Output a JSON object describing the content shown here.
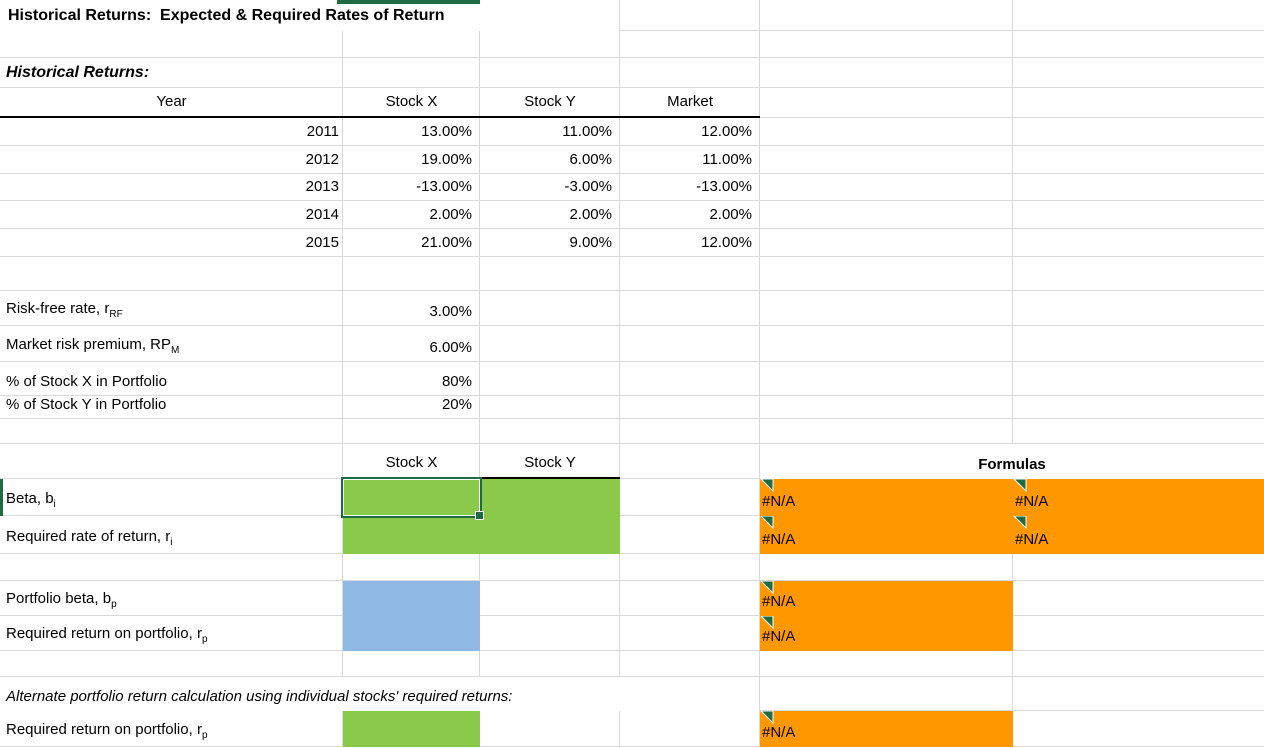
{
  "sheet_title": "Historical Returns:  Expected & Required Rates of Return",
  "historical": {
    "heading": "Historical Returns:",
    "headers": [
      "Year",
      "Stock X",
      "Stock Y",
      "Market"
    ],
    "rows": [
      [
        "2011",
        "13.00%",
        "11.00%",
        "12.00%"
      ],
      [
        "2012",
        "19.00%",
        "6.00%",
        "11.00%"
      ],
      [
        "2013",
        "-13.00%",
        "-3.00%",
        "-13.00%"
      ],
      [
        "2014",
        "2.00%",
        "2.00%",
        "2.00%"
      ],
      [
        "2015",
        "21.00%",
        "9.00%",
        "12.00%"
      ]
    ]
  },
  "inputs": {
    "rows": [
      {
        "label": "Risk-free rate, r",
        "sub": "RF",
        "value": "3.00%"
      },
      {
        "label": "Market risk premium, RP",
        "sub": "M",
        "value": "6.00%"
      },
      {
        "label": "% of Stock X in Portfolio",
        "sub": "",
        "value": "80%"
      },
      {
        "label": "% of Stock Y in Portfolio",
        "sub": "",
        "value": "20%"
      }
    ]
  },
  "beta_section": {
    "col_headers": [
      "Stock X",
      "Stock Y"
    ],
    "formulas_header": "Formulas",
    "row1_label": "Beta, b",
    "row1_sub": "i",
    "row2_label": "Required rate of return, r",
    "row2_sub": "i",
    "na": "#N/A"
  },
  "portfolio_section": {
    "row1_label": "Portfolio beta, b",
    "row1_sub": "p",
    "row2_label": "Required return on portfolio, r",
    "row2_sub": "p"
  },
  "alternate_section": {
    "note": "Alternate portfolio return calculation using individual stocks' required returns:",
    "row_label": "Required return on portfolio, r",
    "row_sub": "p"
  },
  "chart_data": {
    "type": "table",
    "title": "Historical Returns:  Expected & Required Rates of Return",
    "categories": [
      "2011",
      "2012",
      "2013",
      "2014",
      "2015"
    ],
    "series": [
      {
        "name": "Stock X",
        "values": [
          13.0,
          19.0,
          -13.0,
          2.0,
          21.0
        ]
      },
      {
        "name": "Stock Y",
        "values": [
          11.0,
          6.0,
          -3.0,
          2.0,
          9.0
        ]
      },
      {
        "name": "Market",
        "values": [
          12.0,
          11.0,
          -13.0,
          2.0,
          12.0
        ]
      }
    ],
    "parameters": {
      "risk_free_rate": "3.00%",
      "market_risk_premium": "6.00%",
      "pct_stock_x_in_portfolio": "80%",
      "pct_stock_y_in_portfolio": "20%"
    }
  },
  "colors": {
    "green_fill": "#8bc94b",
    "blue_fill": "#8fb9e3",
    "orange_fill": "#ff9800",
    "selection_green": "#1e6b43",
    "gridline": "#d9d9d9"
  }
}
